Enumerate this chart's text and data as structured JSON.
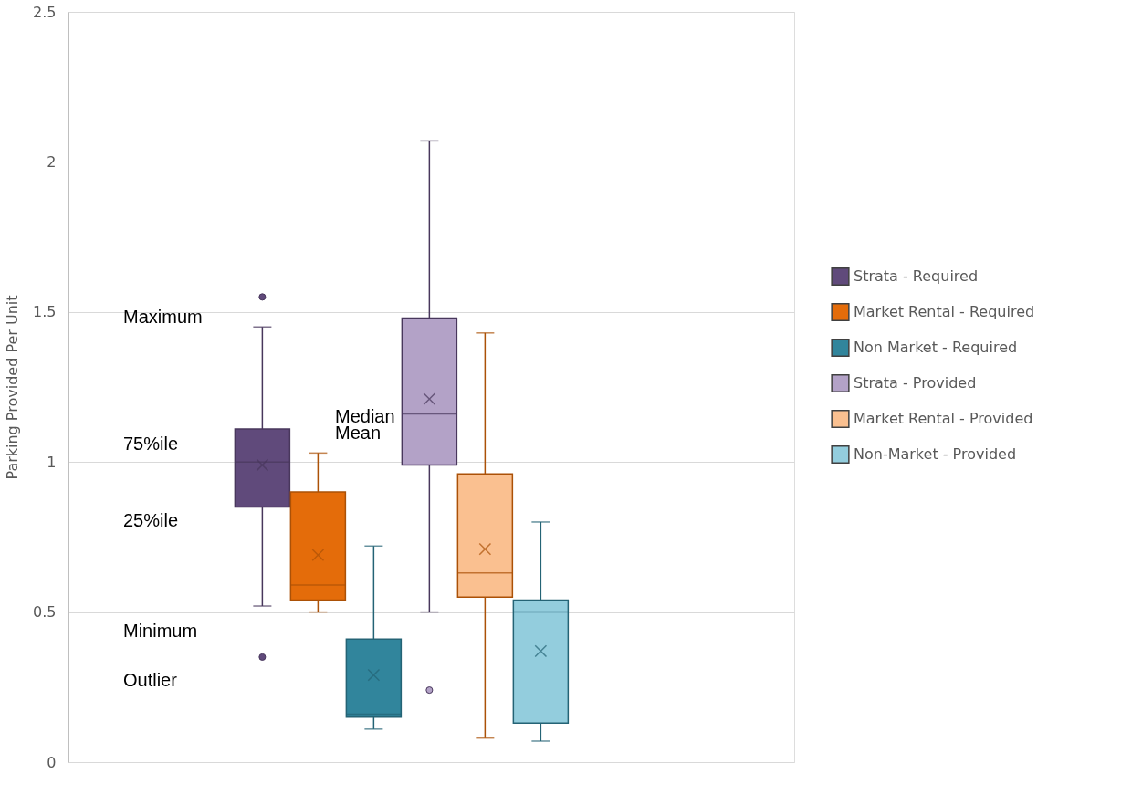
{
  "chart_data": {
    "type": "box",
    "ylabel": "Parking Provided Per Unit",
    "ylim": [
      0,
      2.5
    ],
    "yticks": [
      0,
      0.5,
      1,
      1.5,
      2,
      2.5
    ],
    "grid": "y",
    "legend": "right",
    "categories": [
      null
    ],
    "series": [
      {
        "name": "Strata - Required",
        "color": "#604a7b",
        "boxes": [
          {
            "low": 0.52,
            "q1": 0.85,
            "median": 1.0,
            "q3": 1.11,
            "high": 1.45,
            "mean": 0.99,
            "outliers": [
              1.55,
              0.35
            ]
          }
        ]
      },
      {
        "name": "Market Rental - Required",
        "color": "#e46c0a",
        "boxes": [
          {
            "low": 0.5,
            "q1": 0.54,
            "median": 0.59,
            "q3": 0.9,
            "high": 1.03,
            "mean": 0.69
          }
        ]
      },
      {
        "name": "Non Market - Required",
        "color": "#31859c",
        "boxes": [
          {
            "low": 0.11,
            "q1": 0.15,
            "median": 0.16,
            "q3": 0.41,
            "high": 0.72,
            "mean": 0.29
          }
        ]
      },
      {
        "name": "Strata - Provided",
        "color": "#b3a2c7",
        "boxes": [
          {
            "low": 0.5,
            "q1": 0.99,
            "median": 1.16,
            "q3": 1.48,
            "high": 2.07,
            "mean": 1.21,
            "outliers": [
              0.24
            ]
          }
        ]
      },
      {
        "name": "Market Rental - Provided",
        "color": "#fac090",
        "boxes": [
          {
            "low": 0.08,
            "q1": 0.55,
            "median": 0.63,
            "q3": 0.96,
            "high": 1.43,
            "mean": 0.71
          }
        ]
      },
      {
        "name": "Non-Market - Provided",
        "color": "#93cddd",
        "boxes": [
          {
            "low": 0.07,
            "q1": 0.13,
            "median": 0.5,
            "q3": 0.54,
            "high": 0.8,
            "mean": 0.37
          }
        ]
      }
    ],
    "annotations": [
      "Maximum",
      "75%ile",
      "25%ile",
      "Minimum",
      "Outlier",
      "Median",
      "Mean"
    ]
  }
}
